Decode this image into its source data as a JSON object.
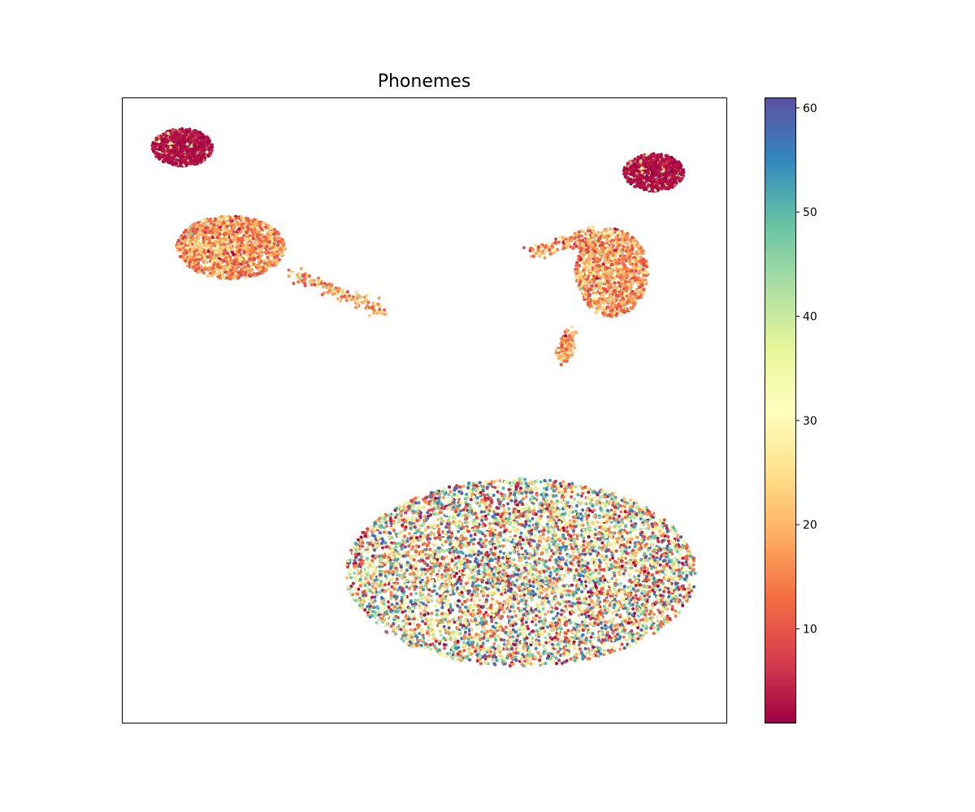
{
  "chart_data": {
    "type": "scatter",
    "title": "Phonemes",
    "xlabel": "",
    "ylabel": "",
    "x_ticks_shown": false,
    "y_ticks_shown": false,
    "grid": false,
    "colormap": "Spectral",
    "colorbar": {
      "range": [
        1,
        61
      ],
      "ticks": [
        10,
        20,
        30,
        40,
        50,
        60
      ],
      "tick_labels": [
        "10",
        "20",
        "30",
        "40",
        "50",
        "60"
      ],
      "position": "right"
    },
    "clusters": [
      {
        "name_hint": "large-ellipse",
        "center": [
          0.66,
          0.24
        ],
        "radii": [
          0.29,
          0.15
        ],
        "points": 6000,
        "value_range": [
          1,
          61
        ],
        "dominant": "mixed"
      },
      {
        "name_hint": "top-left-cap",
        "center": [
          0.1,
          0.92
        ],
        "radii": [
          0.05,
          0.03
        ],
        "points": 900,
        "value_range": [
          1,
          4
        ],
        "dominant": "dark-red"
      },
      {
        "name_hint": "top-left-body",
        "center": [
          0.18,
          0.76
        ],
        "radii": [
          0.09,
          0.05
        ],
        "points": 1500,
        "value_range": [
          5,
          30
        ],
        "dominant": "orange"
      },
      {
        "name_hint": "top-left-tail",
        "start": [
          0.28,
          0.72
        ],
        "end": [
          0.43,
          0.66
        ],
        "points": 150,
        "value_range": [
          5,
          30
        ]
      },
      {
        "name_hint": "top-right-cap",
        "center": [
          0.88,
          0.88
        ],
        "radii": [
          0.05,
          0.03
        ],
        "points": 800,
        "value_range": [
          1,
          4
        ],
        "dominant": "dark-red"
      },
      {
        "name_hint": "top-right-body",
        "center": [
          0.81,
          0.72
        ],
        "radii": [
          0.06,
          0.07
        ],
        "points": 1200,
        "value_range": [
          5,
          30
        ],
        "dominant": "orange"
      },
      {
        "name_hint": "top-right-arm",
        "start": [
          0.68,
          0.75
        ],
        "end": [
          0.78,
          0.78
        ],
        "points": 150,
        "value_range": [
          5,
          45
        ]
      },
      {
        "name_hint": "top-right-tail",
        "start": [
          0.74,
          0.62
        ],
        "end": [
          0.73,
          0.58
        ],
        "points": 150,
        "value_range": [
          5,
          30
        ]
      }
    ]
  }
}
